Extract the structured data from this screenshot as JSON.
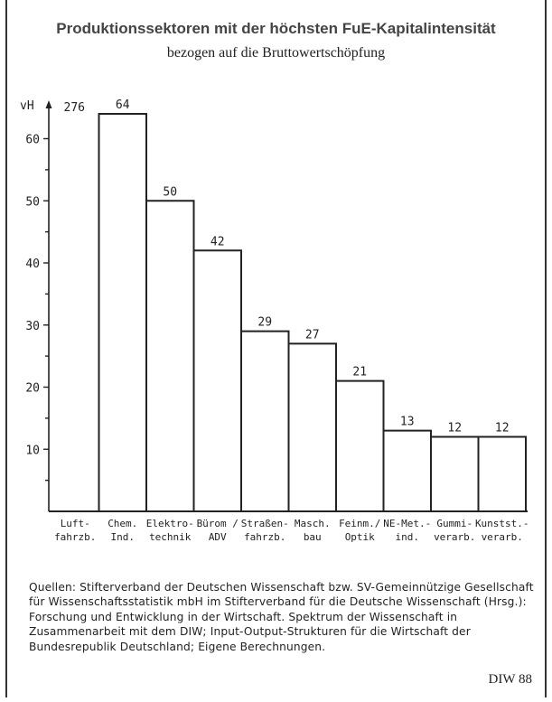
{
  "header": {
    "title": "Produktionssektoren mit der höchsten FuE-Kapitalintensität",
    "subtitle": "bezogen auf die Bruttowertschöpfung"
  },
  "chart_data": {
    "type": "bar",
    "ylabel": "vH",
    "ylim": [
      0,
      64
    ],
    "yticks": [
      10,
      20,
      30,
      40,
      50,
      60
    ],
    "broken_axis_label": "276",
    "categories": [
      [
        "Luft-",
        "fahrzb."
      ],
      [
        "Chem.",
        "Ind."
      ],
      [
        "Elektro-",
        "technik"
      ],
      [
        "Bürom /",
        "ADV"
      ],
      [
        "Straßen-",
        "fahrzb."
      ],
      [
        "Masch.",
        "bau"
      ],
      [
        "Feinm./",
        "Optik"
      ],
      [
        "NE-Met.-",
        "ind."
      ],
      [
        "Gummi-",
        "verarb."
      ],
      [
        "Kunstst.-",
        "verarb."
      ]
    ],
    "values": [
      276,
      64,
      50,
      42,
      29,
      27,
      21,
      13,
      12,
      12
    ],
    "data_labels": [
      "276",
      "64",
      "50",
      "42",
      "29",
      "27",
      "21",
      "13",
      "12",
      "12"
    ]
  },
  "source": {
    "text": "Quellen: Stifterverband der Deutschen Wissenschaft bzw. SV-Gemeinnützige Gesellschaft für Wissenschaftsstatistik mbH im Stifterverband für die Deutsche Wissenschaft (Hrsg.): Forschung und Entwicklung in der Wirtschaft. Spektrum der Wissenschaft in Zusammenarbeit mit dem DIW; Input-Output-Strukturen für die Wirtschaft der Bundesrepublik Deutschland; Eigene Berechnungen."
  },
  "footer": {
    "label": "DIW 88"
  }
}
